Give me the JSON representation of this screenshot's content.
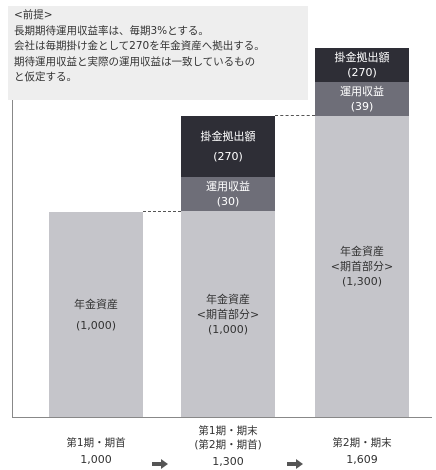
{
  "premise": {
    "header": "<前提>",
    "lines": [
      "長期期待運用収益率は、毎期3%とする。",
      "会社は毎期掛け金として270を年金資産へ拠出する。",
      "期待運用収益と実際の運用収益は一致しているもの",
      "と仮定する。"
    ]
  },
  "bars": [
    {
      "segments": {
        "asset": {
          "lines": [
            "年金資産",
            "(1,000)"
          ]
        }
      },
      "label": [
        "第1期・期首"
      ],
      "value": "1,000"
    },
    {
      "segments": {
        "asset": {
          "lines": [
            "年金資産",
            "<期首部分>",
            "(1,000)"
          ]
        },
        "return": {
          "lines": [
            "運用収益",
            "(30)"
          ]
        },
        "contribution": {
          "lines": [
            "掛金拠出額",
            "(270)"
          ]
        }
      },
      "label": [
        "第1期・期末",
        "(第2期・期首)"
      ],
      "value": "1,300"
    },
    {
      "segments": {
        "asset": {
          "lines": [
            "年金資産",
            "<期首部分>",
            "(1,300)"
          ]
        },
        "return": {
          "lines": [
            "運用収益",
            "(39)"
          ]
        },
        "contribution": {
          "lines": [
            "掛金拠出額",
            "(270)"
          ]
        }
      },
      "label": [
        "第2期・期末"
      ],
      "value": "1,609"
    }
  ],
  "colors": {
    "asset": "#c5c5ca",
    "return": "#6e6e78",
    "contribution": "#2e2e36"
  },
  "arrow_icon": "right-arrow"
}
